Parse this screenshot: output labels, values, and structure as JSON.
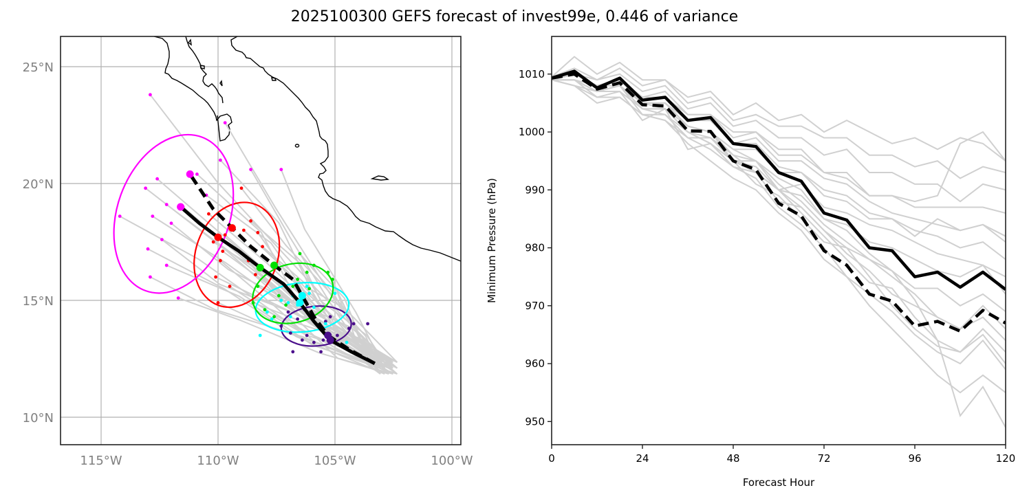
{
  "title": "2025100300 GEFS forecast of invest99e, 0.446 of variance",
  "chart_data": [
    {
      "type": "scatter",
      "name": "track-map",
      "title": "",
      "xlabel": "",
      "ylabel": "",
      "xlim_lon": [
        -116.7,
        -99.6
      ],
      "ylim_lat": [
        8.8,
        26.3
      ],
      "x_ticks": [
        {
          "value": -115,
          "label": "115°W"
        },
        {
          "value": -110,
          "label": "110°W"
        },
        {
          "value": -105,
          "label": "105°W"
        },
        {
          "value": -100,
          "label": "100°W"
        }
      ],
      "y_ticks": [
        {
          "value": 10,
          "label": "10°N"
        },
        {
          "value": 15,
          "label": "15°N"
        },
        {
          "value": 20,
          "label": "20°N"
        },
        {
          "value": 25,
          "label": "25°N"
        }
      ],
      "grid": true,
      "colors": {
        "member_track": "#d0d0d0",
        "mean_track": "#000000",
        "coast": "#000000",
        "grid": "#b0b0b0",
        "day1": "#4b0f8c",
        "day2": "#00ffff",
        "day3": "#00e000",
        "day4": "#ff0000",
        "day5": "#ff00ff"
      },
      "mean_track_solid": [
        [
          -103.3,
          12.3
        ],
        [
          -104.3,
          12.8
        ],
        [
          -105.2,
          13.3
        ],
        [
          -105.9,
          14.1
        ],
        [
          -106.5,
          14.9
        ],
        [
          -107.2,
          15.7
        ],
        [
          -108.2,
          16.4
        ],
        [
          -109.1,
          17.1
        ],
        [
          -110.0,
          17.7
        ],
        [
          -110.8,
          18.3
        ],
        [
          -111.6,
          19.0
        ]
      ],
      "mean_track_dashed": [
        [
          -103.3,
          12.3
        ],
        [
          -104.4,
          12.9
        ],
        [
          -105.3,
          13.5
        ],
        [
          -105.9,
          14.3
        ],
        [
          -106.4,
          15.2
        ],
        [
          -106.8,
          15.9
        ],
        [
          -107.6,
          16.5
        ],
        [
          -108.6,
          17.3
        ],
        [
          -109.4,
          18.1
        ],
        [
          -110.2,
          18.9
        ],
        [
          -111.2,
          20.4
        ]
      ],
      "ellipses": [
        {
          "name": "day1",
          "center": [
            -105.8,
            13.9
          ],
          "rx": 1.5,
          "ry": 0.85,
          "angle": -5
        },
        {
          "name": "day2",
          "center": [
            -106.4,
            14.7
          ],
          "rx": 2.0,
          "ry": 1.05,
          "angle": -5
        },
        {
          "name": "day3",
          "center": [
            -106.8,
            15.3
          ],
          "rx": 1.75,
          "ry": 1.25,
          "angle": -15
        },
        {
          "name": "day4",
          "center": [
            -109.2,
            16.95
          ],
          "rx": 1.75,
          "ry": 2.3,
          "angle": 20
        },
        {
          "name": "day5",
          "center": [
            -111.9,
            18.7
          ],
          "rx": 2.4,
          "ry": 3.5,
          "angle": 20
        }
      ],
      "positions": {
        "day1": [
          [
            -105.6,
            12.8
          ],
          [
            -106.8,
            12.8
          ],
          [
            -104.9,
            13.5
          ],
          [
            -104.4,
            13.8
          ],
          [
            -105.4,
            14.1
          ],
          [
            -106.2,
            13.5
          ],
          [
            -107.3,
            13.9
          ],
          [
            -106.3,
            14.6
          ],
          [
            -105.2,
            14.3
          ],
          [
            -106.9,
            13.6
          ],
          [
            -105.9,
            13.2
          ],
          [
            -104.2,
            14.0
          ],
          [
            -106.6,
            14.2
          ],
          [
            -107.0,
            14.5
          ],
          [
            -105.5,
            13.3
          ],
          [
            -106.4,
            13.3
          ],
          [
            -103.6,
            14.0
          ]
        ],
        "day2": [
          [
            -106.1,
            15.3
          ],
          [
            -106.6,
            14.8
          ],
          [
            -107.9,
            14.5
          ],
          [
            -108.2,
            13.5
          ],
          [
            -106.8,
            15.2
          ],
          [
            -105.9,
            14.7
          ],
          [
            -105.0,
            15.3
          ],
          [
            -106.9,
            14.3
          ],
          [
            -107.7,
            14.2
          ],
          [
            -107.0,
            14.9
          ],
          [
            -104.5,
            13.2
          ],
          [
            -105.4,
            14.0
          ],
          [
            -106.2,
            15.6
          ],
          [
            -107.3,
            15.0
          ]
        ],
        "day3": [
          [
            -106.6,
            15.9
          ],
          [
            -106.8,
            15.6
          ],
          [
            -108.3,
            15.6
          ],
          [
            -107.4,
            15.2
          ],
          [
            -105.9,
            16.5
          ],
          [
            -105.1,
            15.9
          ],
          [
            -106.2,
            16.2
          ],
          [
            -108.5,
            14.9
          ],
          [
            -107.6,
            14.3
          ],
          [
            -106.1,
            15.5
          ],
          [
            -105.3,
            16.2
          ],
          [
            -107.1,
            14.8
          ],
          [
            -106.5,
            17.0
          ],
          [
            -108.0,
            14.6
          ]
        ],
        "day4": [
          [
            -109.1,
            17.1
          ],
          [
            -108.9,
            18.0
          ],
          [
            -109.7,
            17.8
          ],
          [
            -108.1,
            17.3
          ],
          [
            -110.2,
            17.5
          ],
          [
            -109.9,
            16.7
          ],
          [
            -110.1,
            16.0
          ],
          [
            -109.5,
            15.6
          ],
          [
            -108.3,
            17.9
          ],
          [
            -108.6,
            18.4
          ],
          [
            -109.0,
            19.8
          ],
          [
            -108.7,
            16.7
          ],
          [
            -110.0,
            14.9
          ],
          [
            -109.8,
            17.1
          ],
          [
            -108.4,
            16.1
          ],
          [
            -110.4,
            18.7
          ]
        ],
        "day5": [
          [
            -110.9,
            20.4
          ],
          [
            -111.5,
            19.0
          ],
          [
            -112.6,
            20.2
          ],
          [
            -113.1,
            19.8
          ],
          [
            -112.8,
            18.6
          ],
          [
            -112.4,
            17.6
          ],
          [
            -113.0,
            17.2
          ],
          [
            -114.2,
            18.6
          ],
          [
            -112.0,
            18.3
          ],
          [
            -112.2,
            16.5
          ],
          [
            -112.9,
            16.0
          ],
          [
            -109.9,
            21.0
          ],
          [
            -109.7,
            22.6
          ],
          [
            -112.9,
            23.8
          ],
          [
            -110.5,
            19.5
          ],
          [
            -108.6,
            20.6
          ],
          [
            -107.3,
            20.6
          ],
          [
            -112.2,
            19.1
          ],
          [
            -111.7,
            15.1
          ]
        ]
      },
      "labels": {
        "legend": "none"
      }
    },
    {
      "type": "line",
      "name": "min-pressure",
      "title": "",
      "xlabel": "Forecast Hour",
      "ylabel": "Minimum Pressure (hPa)",
      "xlim": [
        0,
        120
      ],
      "ylim": [
        946,
        1016.5
      ],
      "x_ticks": [
        0,
        24,
        48,
        72,
        96,
        120
      ],
      "y_ticks": [
        950,
        960,
        970,
        980,
        990,
        1000,
        1010
      ],
      "grid": false,
      "x": [
        0,
        6,
        12,
        18,
        24,
        30,
        36,
        42,
        48,
        54,
        60,
        66,
        72,
        78,
        84,
        90,
        96,
        102,
        108,
        114,
        120
      ],
      "series": [
        {
          "name": "mean (solid)",
          "style": "solid",
          "color": "#000000",
          "values": [
            1009.3,
            1010.5,
            1007.6,
            1009.3,
            1005.5,
            1006.0,
            1002.0,
            1002.5,
            998.0,
            997.5,
            993.0,
            991.5,
            986.0,
            984.8,
            980.0,
            979.5,
            975.0,
            975.8,
            973.2,
            975.8,
            972.8
          ]
        },
        {
          "name": "mean (dashed)",
          "style": "dashed",
          "color": "#000000",
          "values": [
            1009.3,
            1010.0,
            1007.4,
            1008.5,
            1004.7,
            1004.5,
            1000.2,
            1000.1,
            995.0,
            993.5,
            987.7,
            985.5,
            979.5,
            977.0,
            972.0,
            970.8,
            966.5,
            967.3,
            965.6,
            969.2,
            967.0
          ]
        }
      ],
      "members": [
        [
          1009.5,
          1013,
          1010,
          1012,
          1009,
          1009,
          1006,
          1007,
          1003,
          1005,
          1002,
          1003,
          1000,
          1002,
          1000,
          998,
          999,
          997,
          999,
          998,
          995
        ],
        [
          1009.5,
          1011,
          1009,
          1011,
          1008,
          1009,
          1005,
          1006,
          1002,
          1003,
          1001,
          1001,
          999,
          999,
          996,
          996,
          994,
          995,
          992,
          994,
          993
        ],
        [
          1009.5,
          1010,
          1009,
          1010,
          1007,
          1008,
          1004,
          1005,
          1001,
          1002,
          999,
          999,
          996,
          997,
          993,
          993,
          991,
          991,
          988,
          991,
          990
        ],
        [
          1009,
          1009,
          1008,
          1009,
          1006,
          1007,
          1003,
          1003,
          999,
          1000,
          997,
          997,
          993,
          993,
          989,
          989,
          987,
          987,
          987,
          987,
          986
        ],
        [
          1009,
          1009,
          1007,
          1008,
          1005,
          1005,
          1002,
          1002,
          998,
          999,
          995,
          995,
          992,
          991,
          988,
          986,
          985,
          984,
          983,
          984,
          982
        ],
        [
          1009,
          1008,
          1006,
          1007,
          1004,
          1004,
          1001,
          1000,
          997,
          997,
          993,
          993,
          990,
          989,
          986,
          985,
          983,
          982,
          980,
          981,
          978
        ],
        [
          1009,
          1008,
          1005,
          1006,
          1003,
          1003,
          999,
          999,
          995,
          995,
          990,
          991,
          987,
          986,
          984,
          983,
          981,
          979,
          978,
          977,
          975
        ],
        [
          1009,
          1009,
          1006,
          1006,
          1003,
          1002,
          999,
          997,
          994,
          993,
          990,
          989,
          985,
          984,
          981,
          980,
          978,
          976,
          975,
          977,
          972
        ],
        [
          1009,
          1008,
          1007,
          1007,
          1002,
          1004,
          997,
          998,
          995,
          991,
          989,
          985,
          981,
          980,
          978,
          976,
          973,
          973,
          970,
          972,
          969
        ],
        [
          1009,
          1009,
          1007,
          1008,
          1004,
          1003,
          1000,
          998,
          995,
          993,
          988,
          987,
          983,
          979,
          976,
          972,
          970,
          968,
          966,
          970,
          966
        ],
        [
          1009,
          1010,
          1008,
          1008,
          1005,
          1004,
          1000,
          999,
          996,
          993,
          990,
          986,
          982,
          978,
          974,
          973,
          968,
          964,
          962,
          966,
          962
        ],
        [
          1009,
          1009,
          1007,
          1008,
          1004,
          1004,
          1000,
          998,
          994,
          992,
          987,
          984,
          980,
          975,
          972,
          969,
          965,
          962,
          960,
          964,
          959
        ],
        [
          1009,
          1010,
          1008,
          1009,
          1005,
          1005,
          1001,
          1000,
          997,
          995,
          991,
          988,
          984,
          981,
          978,
          975,
          972,
          968,
          966,
          968,
          964
        ],
        [
          1009,
          1009,
          1007,
          1008,
          1003,
          1002,
          998,
          995,
          992,
          990,
          986,
          983,
          978,
          975,
          970,
          966,
          962,
          958,
          955,
          958,
          955
        ],
        [
          1009,
          1010,
          1008,
          1009,
          1005,
          1004,
          1001,
          1000,
          995,
          994,
          990,
          987,
          983,
          980,
          975,
          970,
          966,
          963,
          962,
          965,
          960
        ],
        [
          1009,
          1010,
          1008,
          1009,
          1005,
          1005,
          1001,
          1000,
          996,
          995,
          992,
          990,
          985,
          983,
          979,
          976,
          971,
          964,
          951,
          956,
          949
        ],
        [
          1009,
          1010,
          1008,
          1009,
          1006,
          1006,
          1002,
          1002,
          998,
          998,
          994,
          993,
          989,
          988,
          985,
          985,
          982,
          985,
          983,
          984,
          981
        ],
        [
          1009,
          1010,
          1008,
          1009,
          1006,
          1006,
          1003,
          1003,
          1000,
          1000,
          996,
          996,
          993,
          992,
          989,
          989,
          988,
          989,
          998,
          1000,
          995
        ]
      ]
    }
  ]
}
